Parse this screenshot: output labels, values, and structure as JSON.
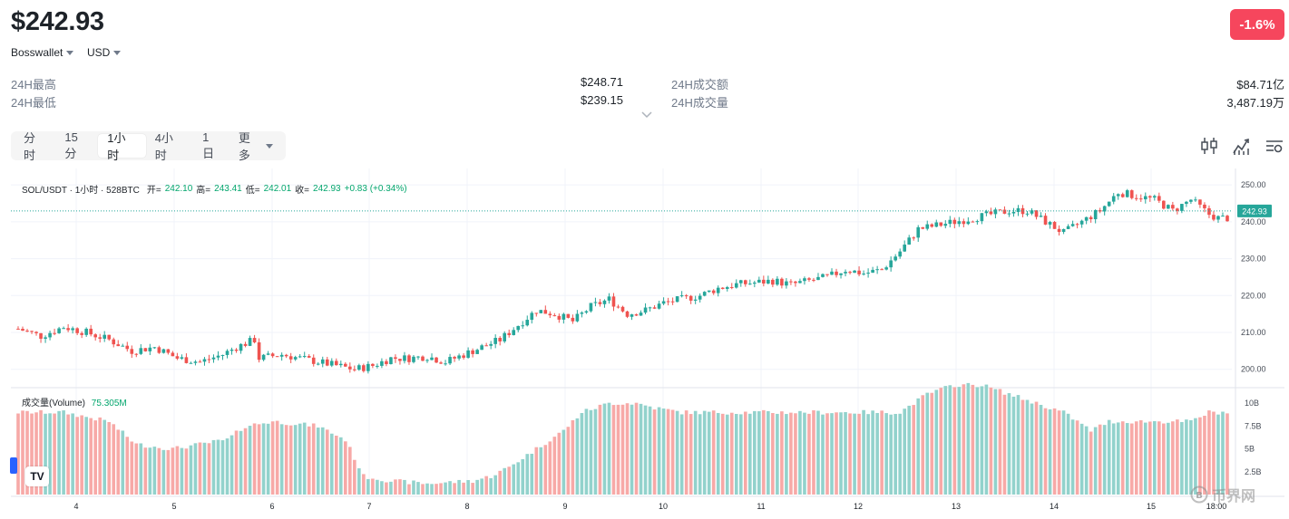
{
  "header": {
    "price": "$242.93",
    "change": "-1.6%",
    "source": "Bosswallet",
    "currency": "USD"
  },
  "stats": {
    "high_label": "24H最高",
    "high_value": "$248.71",
    "low_label": "24H最低",
    "low_value": "$239.15",
    "turnover_label": "24H成交额",
    "turnover_value": "$84.71亿",
    "volume_label": "24H成交量",
    "volume_value": "3,487.19万"
  },
  "tabs": [
    "分时",
    "15分",
    "1小时",
    "4小时",
    "1日",
    "更多"
  ],
  "active_tab": "1小时",
  "icons": {
    "candle": "candlestick-icon",
    "line": "line-chart-icon",
    "settings": "settings-icon",
    "expand": "chevron-down-icon"
  },
  "colors": {
    "up": "#26a69a",
    "down": "#ef5350",
    "up_vol": "#92d2cc",
    "down_vol": "#f7a9a7",
    "badge": "#f6465d"
  },
  "legend": {
    "pair": "SOL/USDT · 1小时 · 528BTC",
    "open_label": "开=",
    "open": "242.10",
    "high_label": "高=",
    "high": "243.41",
    "low_label": "低=",
    "low": "242.01",
    "close_label": "收=",
    "close": "242.93",
    "delta": "+0.83 (+0.34%)"
  },
  "volume_legend": {
    "label": "成交量(Volume)",
    "value": "75.305M"
  },
  "watermark": "币界网",
  "chart_data": {
    "type": "candlestick",
    "title": "SOL/USDT · 1小时",
    "last_price": "242.93",
    "ylim": [
      196,
      252
    ],
    "y_ticks": [
      "250.00",
      "240.00",
      "230.00",
      "220.00",
      "210.00",
      "200.00"
    ],
    "y_tick_values": [
      250,
      240,
      230,
      220,
      210,
      200
    ],
    "x_ticks": [
      "4",
      "5",
      "6",
      "7",
      "8",
      "9",
      "10",
      "11",
      "12",
      "13",
      "14",
      "15",
      "18:00"
    ],
    "volume_ticks": [
      "10B",
      "7.5B",
      "5B",
      "2.5B"
    ],
    "volume_tick_values": [
      10,
      7.5,
      5,
      2.5
    ],
    "volume_ylim": [
      0,
      11.5
    ],
    "close_path": [
      [
        0,
        211
      ],
      [
        5,
        209
      ],
      [
        10,
        211.5
      ],
      [
        15,
        210
      ],
      [
        20,
        208
      ],
      [
        25,
        205
      ],
      [
        30,
        206
      ],
      [
        35,
        203
      ],
      [
        40,
        202
      ],
      [
        45,
        204
      ],
      [
        48,
        206
      ],
      [
        52,
        208
      ],
      [
        53,
        203
      ],
      [
        58,
        204
      ],
      [
        62,
        203
      ],
      [
        66,
        202
      ],
      [
        70,
        201
      ],
      [
        74,
        200
      ],
      [
        78,
        201
      ],
      [
        82,
        203
      ],
      [
        86,
        203
      ],
      [
        90,
        203.5
      ],
      [
        94,
        202
      ],
      [
        98,
        204
      ],
      [
        102,
        206
      ],
      [
        106,
        208
      ],
      [
        110,
        212
      ],
      [
        114,
        216
      ],
      [
        118,
        215
      ],
      [
        122,
        213
      ],
      [
        126,
        217
      ],
      [
        130,
        219
      ],
      [
        134,
        215
      ],
      [
        138,
        216
      ],
      [
        142,
        218
      ],
      [
        146,
        219
      ],
      [
        150,
        220
      ],
      [
        154,
        222
      ],
      [
        158,
        223
      ],
      [
        162,
        223.5
      ],
      [
        166,
        224
      ],
      [
        170,
        223
      ],
      [
        174,
        224
      ],
      [
        178,
        225
      ],
      [
        182,
        227
      ],
      [
        186,
        226
      ],
      [
        190,
        227
      ],
      [
        194,
        232
      ],
      [
        198,
        238
      ],
      [
        202,
        239
      ],
      [
        206,
        240
      ],
      [
        210,
        241
      ],
      [
        214,
        242
      ],
      [
        218,
        243
      ],
      [
        222,
        243
      ],
      [
        226,
        240
      ],
      [
        230,
        237
      ],
      [
        234,
        240
      ],
      [
        238,
        243
      ],
      [
        242,
        248
      ],
      [
        246,
        247
      ],
      [
        250,
        246
      ],
      [
        254,
        243
      ],
      [
        258,
        246
      ],
      [
        262,
        242
      ],
      [
        264,
        241
      ],
      [
        266,
        241
      ]
    ],
    "volume_path": [
      [
        0,
        9
      ],
      [
        10,
        9
      ],
      [
        20,
        8
      ],
      [
        26,
        5.5
      ],
      [
        34,
        5
      ],
      [
        40,
        5.5
      ],
      [
        46,
        6
      ],
      [
        50,
        7.5
      ],
      [
        56,
        8
      ],
      [
        66,
        7.5
      ],
      [
        72,
        6
      ],
      [
        76,
        2
      ],
      [
        82,
        1.5
      ],
      [
        90,
        1.2
      ],
      [
        100,
        1.5
      ],
      [
        104,
        2
      ],
      [
        108,
        3
      ],
      [
        114,
        5
      ],
      [
        120,
        7
      ],
      [
        124,
        9
      ],
      [
        130,
        10
      ],
      [
        136,
        10
      ],
      [
        140,
        9.5
      ],
      [
        146,
        9
      ],
      [
        154,
        9
      ],
      [
        162,
        9
      ],
      [
        170,
        9
      ],
      [
        178,
        9
      ],
      [
        186,
        9
      ],
      [
        194,
        9
      ],
      [
        200,
        11
      ],
      [
        206,
        12
      ],
      [
        212,
        12
      ],
      [
        218,
        11
      ],
      [
        224,
        10
      ],
      [
        230,
        9
      ],
      [
        236,
        7
      ],
      [
        240,
        8
      ],
      [
        246,
        8
      ],
      [
        252,
        8
      ],
      [
        258,
        8
      ],
      [
        262,
        9
      ],
      [
        266,
        9
      ]
    ],
    "n_candles": 267
  }
}
